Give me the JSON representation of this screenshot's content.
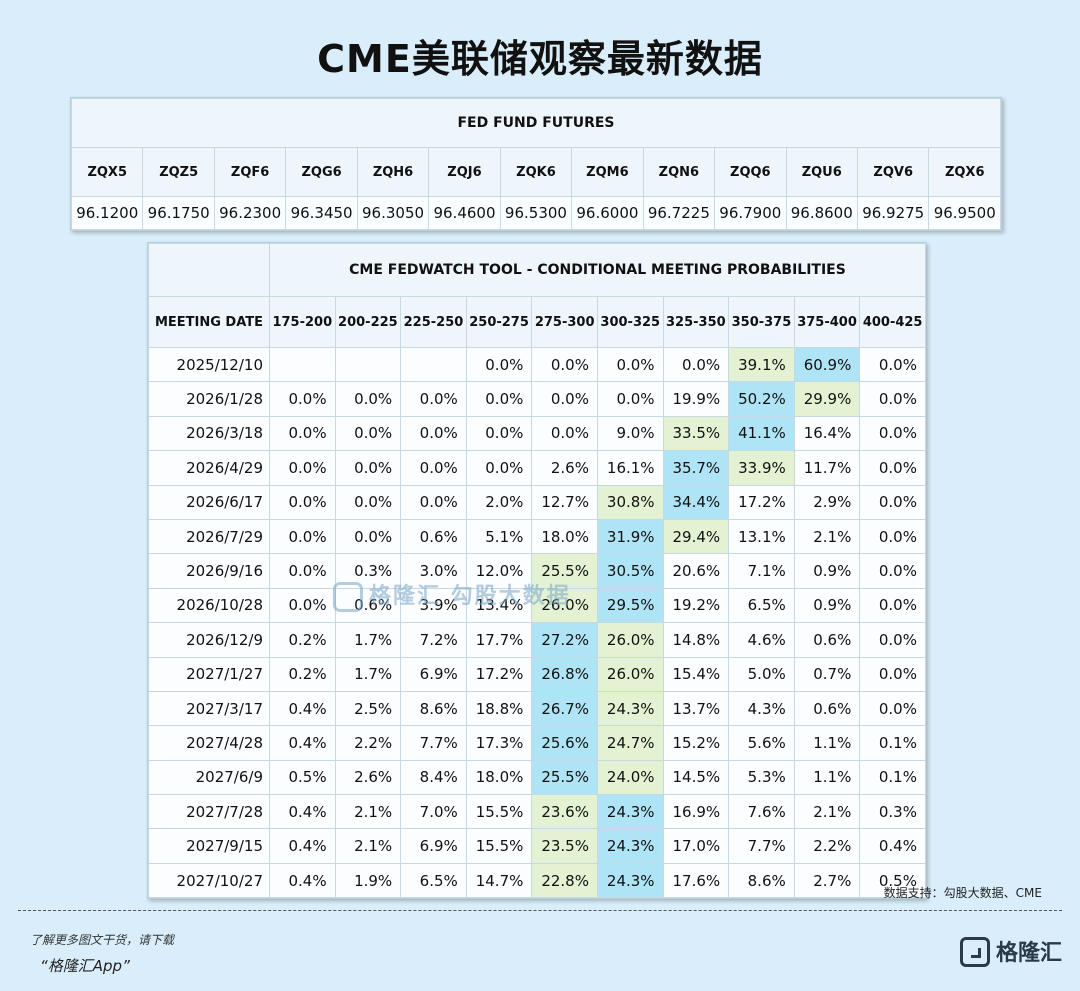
{
  "title": "CME美联储观察最新数据",
  "futures": {
    "header": "FED FUND FUTURES",
    "codes": [
      "ZQX5",
      "ZQZ5",
      "ZQF6",
      "ZQG6",
      "ZQH6",
      "ZQJ6",
      "ZQK6",
      "ZQM6",
      "ZQN6",
      "ZQQ6",
      "ZQU6",
      "ZQV6",
      "ZQX6"
    ],
    "values": [
      "96.1200",
      "96.1750",
      "96.2300",
      "96.3450",
      "96.3050",
      "96.4600",
      "96.5300",
      "96.6000",
      "96.7225",
      "96.7900",
      "96.8600",
      "96.9275",
      "96.9500"
    ]
  },
  "probabilities": {
    "title": "CME FEDWATCH TOOL - CONDITIONAL MEETING PROBABILITIES",
    "date_header": "MEETING DATE",
    "ranges": [
      "175-200",
      "200-225",
      "225-250",
      "250-275",
      "275-300",
      "300-325",
      "325-350",
      "350-375",
      "375-400",
      "400-425"
    ],
    "rows": [
      {
        "date": "2025/12/10",
        "values": [
          "",
          "",
          "",
          "0.0%",
          "0.0%",
          "0.0%",
          "0.0%",
          "39.1%",
          "60.9%",
          "0.0%"
        ]
      },
      {
        "date": "2026/1/28",
        "values": [
          "0.0%",
          "0.0%",
          "0.0%",
          "0.0%",
          "0.0%",
          "0.0%",
          "19.9%",
          "50.2%",
          "29.9%",
          "0.0%"
        ]
      },
      {
        "date": "2026/3/18",
        "values": [
          "0.0%",
          "0.0%",
          "0.0%",
          "0.0%",
          "0.0%",
          "9.0%",
          "33.5%",
          "41.1%",
          "16.4%",
          "0.0%"
        ]
      },
      {
        "date": "2026/4/29",
        "values": [
          "0.0%",
          "0.0%",
          "0.0%",
          "0.0%",
          "2.6%",
          "16.1%",
          "35.7%",
          "33.9%",
          "11.7%",
          "0.0%"
        ]
      },
      {
        "date": "2026/6/17",
        "values": [
          "0.0%",
          "0.0%",
          "0.0%",
          "2.0%",
          "12.7%",
          "30.8%",
          "34.4%",
          "17.2%",
          "2.9%",
          "0.0%"
        ]
      },
      {
        "date": "2026/7/29",
        "values": [
          "0.0%",
          "0.0%",
          "0.6%",
          "5.1%",
          "18.0%",
          "31.9%",
          "29.4%",
          "13.1%",
          "2.1%",
          "0.0%"
        ]
      },
      {
        "date": "2026/9/16",
        "values": [
          "0.0%",
          "0.3%",
          "3.0%",
          "12.0%",
          "25.5%",
          "30.5%",
          "20.6%",
          "7.1%",
          "0.9%",
          "0.0%"
        ]
      },
      {
        "date": "2026/10/28",
        "values": [
          "0.0%",
          "0.6%",
          "3.9%",
          "13.4%",
          "26.0%",
          "29.5%",
          "19.2%",
          "6.5%",
          "0.9%",
          "0.0%"
        ]
      },
      {
        "date": "2026/12/9",
        "values": [
          "0.2%",
          "1.7%",
          "7.2%",
          "17.7%",
          "27.2%",
          "26.0%",
          "14.8%",
          "4.6%",
          "0.6%",
          "0.0%"
        ]
      },
      {
        "date": "2027/1/27",
        "values": [
          "0.2%",
          "1.7%",
          "6.9%",
          "17.2%",
          "26.8%",
          "26.0%",
          "15.4%",
          "5.0%",
          "0.7%",
          "0.0%"
        ]
      },
      {
        "date": "2027/3/17",
        "values": [
          "0.4%",
          "2.5%",
          "8.6%",
          "18.8%",
          "26.7%",
          "24.3%",
          "13.7%",
          "4.3%",
          "0.6%",
          "0.0%"
        ]
      },
      {
        "date": "2027/4/28",
        "values": [
          "0.4%",
          "2.2%",
          "7.7%",
          "17.3%",
          "25.6%",
          "24.7%",
          "15.2%",
          "5.6%",
          "1.1%",
          "0.1%"
        ]
      },
      {
        "date": "2027/6/9",
        "values": [
          "0.5%",
          "2.6%",
          "8.4%",
          "18.0%",
          "25.5%",
          "24.0%",
          "14.5%",
          "5.3%",
          "1.1%",
          "0.1%"
        ]
      },
      {
        "date": "2027/7/28",
        "values": [
          "0.4%",
          "2.1%",
          "7.0%",
          "15.5%",
          "23.6%",
          "24.3%",
          "16.9%",
          "7.6%",
          "2.1%",
          "0.3%"
        ]
      },
      {
        "date": "2027/9/15",
        "values": [
          "0.4%",
          "2.1%",
          "6.9%",
          "15.5%",
          "23.5%",
          "24.3%",
          "17.0%",
          "7.7%",
          "2.2%",
          "0.4%"
        ]
      },
      {
        "date": "2027/10/27",
        "values": [
          "0.4%",
          "1.9%",
          "6.5%",
          "14.7%",
          "22.8%",
          "24.3%",
          "17.6%",
          "8.6%",
          "2.7%",
          "0.5%"
        ]
      }
    ],
    "highlight_colors": {
      "max": "#aee4f6",
      "near": "#e3f2d2"
    }
  },
  "watermark": "格隆汇  勾股大数据",
  "source_note": "数据支持：勾股大数据、CME",
  "footer": {
    "line1": "了解更多图文干货，请下载",
    "line2": "“格隆汇App”"
  },
  "brand": "格隆汇"
}
